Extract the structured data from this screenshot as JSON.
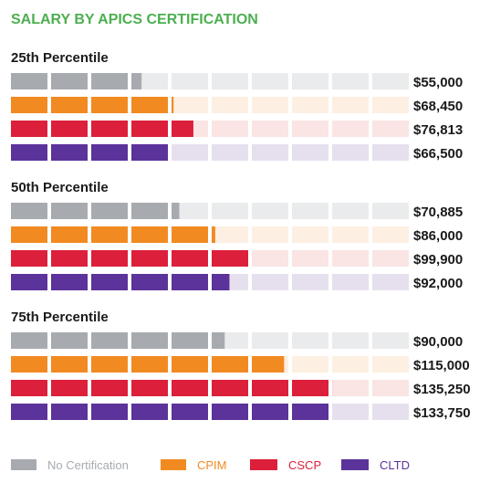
{
  "chart_data": {
    "type": "bar",
    "title": "SALARY BY APICS CERTIFICATION",
    "title_color": "#4caf50",
    "xlim": [
      0,
      167500
    ],
    "grid": false,
    "legend_position": "bottom",
    "series": [
      {
        "name": "No Certification",
        "color": "#a7abb0",
        "track_color": "#eaebed",
        "legend_text_color": "#a7abb0"
      },
      {
        "name": "CPIM",
        "color": "#f28a22",
        "track_color": "#fdefe2",
        "legend_text_color": "#f28a22"
      },
      {
        "name": "CSCP",
        "color": "#dc1f3b",
        "track_color": "#fae4e4",
        "legend_text_color": "#dc1f3b"
      },
      {
        "name": "CLTD",
        "color": "#5b339a",
        "track_color": "#e6e0ee",
        "legend_text_color": "#5b339a"
      }
    ],
    "groups": [
      {
        "label": "25th Percentile",
        "values": [
          55000,
          68450,
          76813,
          66500
        ],
        "value_labels": [
          "$55,000",
          "$68,450",
          "$76,813",
          "$66,500"
        ]
      },
      {
        "label": "50th Percentile",
        "values": [
          70885,
          86000,
          99900,
          92000
        ],
        "value_labels": [
          "$70,885",
          "$86,000",
          "$99,900",
          "$92,000"
        ]
      },
      {
        "label": "75th Percentile",
        "values": [
          90000,
          115000,
          135250,
          133750
        ],
        "value_labels": [
          "$90,000",
          "$115,000",
          "$135,250",
          "$133,750"
        ]
      }
    ]
  }
}
